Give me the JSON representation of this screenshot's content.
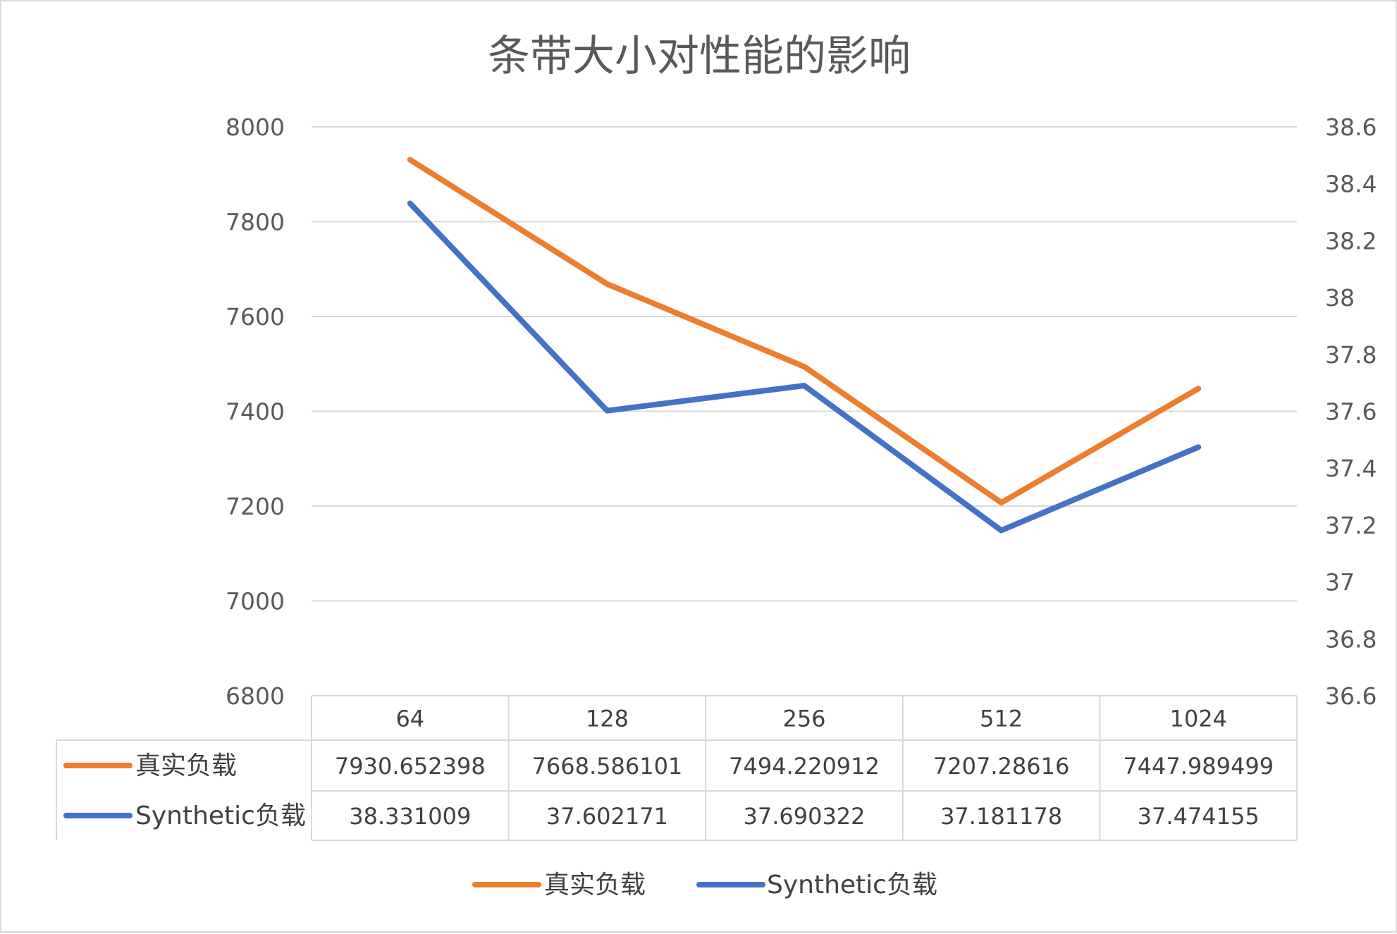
{
  "chart_data": {
    "type": "line",
    "title": "条带大小对性能的影响",
    "categories": [
      "64",
      "128",
      "256",
      "512",
      "1024"
    ],
    "series": [
      {
        "name": "真实负载",
        "axis": "left",
        "color": "#ED7D31",
        "values": [
          7930.652398,
          7668.586101,
          7494.220912,
          7207.28616,
          7447.989499
        ],
        "labels": [
          "7930.652398",
          "7668.586101",
          "7494.220912",
          "7207.28616",
          "7447.989499"
        ]
      },
      {
        "name": "Synthetic负载",
        "axis": "right",
        "color": "#4472C4",
        "values": [
          38.331009,
          37.602171,
          37.690322,
          37.181178,
          37.474155
        ],
        "labels": [
          "38.331009",
          "37.602171",
          "37.690322",
          "37.181178",
          "37.474155"
        ]
      }
    ],
    "y_left": {
      "min": 6800,
      "max": 8000,
      "ticks": [
        "8000",
        "7800",
        "7600",
        "7400",
        "7200",
        "7000",
        "6800"
      ]
    },
    "y_right": {
      "min": 36.6,
      "max": 38.6,
      "ticks": [
        "38.6",
        "38.4",
        "38.2",
        "38",
        "37.8",
        "37.6",
        "37.4",
        "37.2",
        "37",
        "36.8",
        "36.6"
      ]
    },
    "grid": true,
    "legend": "bottom",
    "data_table": true
  }
}
